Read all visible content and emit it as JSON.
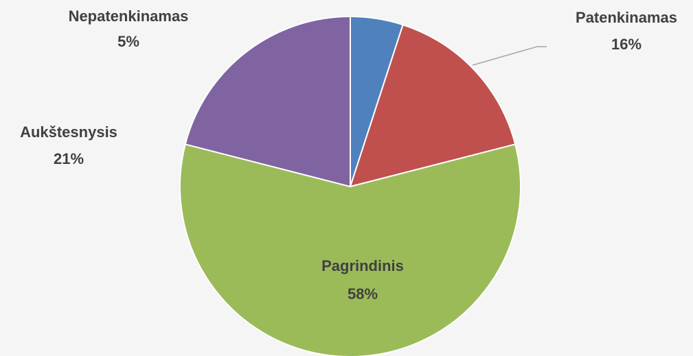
{
  "chart_data": {
    "type": "pie",
    "categories": [
      "Nepatenkinamas",
      "Patenkinamas",
      "Pagrindinis",
      "Aukštesnysis"
    ],
    "values": [
      5,
      16,
      58,
      21
    ],
    "value_labels": [
      "5%",
      "16%",
      "58%",
      "21%"
    ],
    "colors": [
      "#4f81bd",
      "#c0504d",
      "#9bbb59",
      "#8064a2"
    ]
  }
}
